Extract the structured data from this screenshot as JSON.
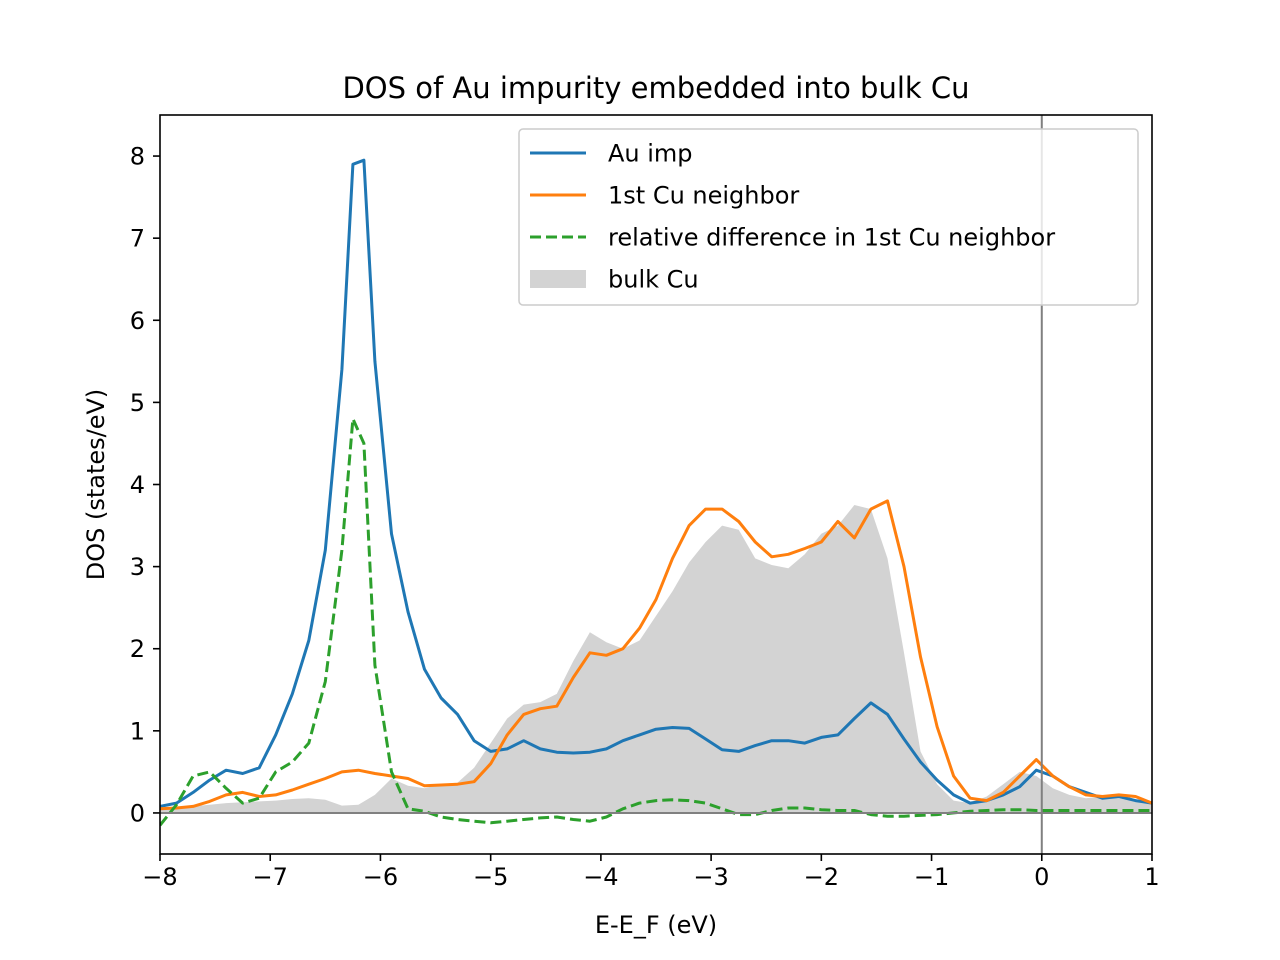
{
  "chart_data": {
    "type": "line",
    "title": "DOS of Au impurity embedded into bulk Cu",
    "xlabel": "E-E_F (eV)",
    "ylabel": "DOS (states/eV)",
    "xlim": [
      -8,
      1
    ],
    "ylim": [
      -0.5,
      8.5
    ],
    "xticks": [
      -8,
      -7,
      -6,
      -5,
      -4,
      -3,
      -2,
      -1,
      0,
      1
    ],
    "xtick_labels": [
      "−8",
      "−7",
      "−6",
      "−5",
      "−4",
      "−3",
      "−2",
      "−1",
      "0",
      "1"
    ],
    "yticks": [
      0,
      1,
      2,
      3,
      4,
      5,
      6,
      7,
      8
    ],
    "ytick_labels": [
      "0",
      "1",
      "2",
      "3",
      "4",
      "5",
      "6",
      "7",
      "8"
    ],
    "grid": false,
    "legend_position": "top-right",
    "reference_lines": [
      {
        "orientation": "vertical",
        "x": 0,
        "color": "#808080"
      },
      {
        "orientation": "horizontal",
        "y": 0,
        "color": "#808080"
      }
    ],
    "series": [
      {
        "name": "bulk Cu",
        "style": "fill",
        "color": "#d3d3d3",
        "x": [
          -8.0,
          -7.85,
          -7.7,
          -7.55,
          -7.4,
          -7.25,
          -7.1,
          -6.95,
          -6.8,
          -6.65,
          -6.5,
          -6.35,
          -6.2,
          -6.05,
          -5.9,
          -5.75,
          -5.6,
          -5.45,
          -5.3,
          -5.15,
          -5.0,
          -4.85,
          -4.7,
          -4.55,
          -4.4,
          -4.25,
          -4.1,
          -3.95,
          -3.8,
          -3.65,
          -3.5,
          -3.35,
          -3.2,
          -3.05,
          -2.9,
          -2.75,
          -2.6,
          -2.45,
          -2.3,
          -2.15,
          -2.0,
          -1.85,
          -1.7,
          -1.55,
          -1.4,
          -1.25,
          -1.1,
          -0.95,
          -0.8,
          -0.65,
          -0.5,
          -0.35,
          -0.2,
          -0.05,
          0.1,
          0.25,
          0.4,
          0.55,
          0.7,
          0.85,
          1.0
        ],
        "y": [
          0.05,
          0.06,
          0.08,
          0.1,
          0.12,
          0.13,
          0.14,
          0.15,
          0.17,
          0.18,
          0.16,
          0.09,
          0.1,
          0.22,
          0.42,
          0.33,
          0.3,
          0.35,
          0.37,
          0.55,
          0.85,
          1.15,
          1.32,
          1.35,
          1.45,
          1.85,
          2.2,
          2.08,
          2.0,
          2.1,
          2.4,
          2.7,
          3.05,
          3.3,
          3.5,
          3.45,
          3.1,
          3.02,
          2.98,
          3.15,
          3.4,
          3.5,
          3.75,
          3.7,
          3.1,
          1.95,
          0.75,
          0.35,
          0.15,
          0.12,
          0.2,
          0.35,
          0.5,
          0.45,
          0.3,
          0.22,
          0.18,
          0.2,
          0.18,
          0.14,
          0.12
        ]
      },
      {
        "name": "Au imp",
        "style": "solid",
        "color": "#1f77b4",
        "x": [
          -8.0,
          -7.85,
          -7.7,
          -7.55,
          -7.4,
          -7.25,
          -7.1,
          -6.95,
          -6.8,
          -6.65,
          -6.5,
          -6.35,
          -6.25,
          -6.15,
          -6.05,
          -5.9,
          -5.75,
          -5.6,
          -5.45,
          -5.3,
          -5.15,
          -5.0,
          -4.85,
          -4.7,
          -4.55,
          -4.4,
          -4.25,
          -4.1,
          -3.95,
          -3.8,
          -3.65,
          -3.5,
          -3.35,
          -3.2,
          -3.05,
          -2.9,
          -2.75,
          -2.6,
          -2.45,
          -2.3,
          -2.15,
          -2.0,
          -1.85,
          -1.7,
          -1.55,
          -1.4,
          -1.25,
          -1.1,
          -0.95,
          -0.8,
          -0.65,
          -0.5,
          -0.35,
          -0.2,
          -0.05,
          0.1,
          0.25,
          0.4,
          0.55,
          0.7,
          0.85,
          1.0
        ],
        "y": [
          0.08,
          0.12,
          0.25,
          0.4,
          0.52,
          0.48,
          0.55,
          0.95,
          1.45,
          2.1,
          3.2,
          5.4,
          7.9,
          7.95,
          5.5,
          3.4,
          2.45,
          1.75,
          1.4,
          1.2,
          0.88,
          0.75,
          0.78,
          0.88,
          0.78,
          0.74,
          0.73,
          0.74,
          0.78,
          0.88,
          0.95,
          1.02,
          1.04,
          1.03,
          0.9,
          0.77,
          0.75,
          0.82,
          0.88,
          0.88,
          0.85,
          0.92,
          0.95,
          1.15,
          1.34,
          1.2,
          0.9,
          0.62,
          0.4,
          0.22,
          0.12,
          0.15,
          0.22,
          0.32,
          0.52,
          0.45,
          0.32,
          0.25,
          0.18,
          0.2,
          0.15,
          0.12
        ]
      },
      {
        "name": "1st Cu neighbor",
        "style": "solid",
        "color": "#ff7f0e",
        "x": [
          -8.0,
          -7.85,
          -7.7,
          -7.55,
          -7.4,
          -7.25,
          -7.1,
          -6.95,
          -6.8,
          -6.65,
          -6.5,
          -6.35,
          -6.2,
          -6.05,
          -5.9,
          -5.75,
          -5.6,
          -5.45,
          -5.3,
          -5.15,
          -5.0,
          -4.85,
          -4.7,
          -4.55,
          -4.4,
          -4.25,
          -4.1,
          -3.95,
          -3.8,
          -3.65,
          -3.5,
          -3.35,
          -3.2,
          -3.05,
          -2.9,
          -2.75,
          -2.6,
          -2.45,
          -2.3,
          -2.15,
          -2.0,
          -1.85,
          -1.7,
          -1.55,
          -1.4,
          -1.25,
          -1.1,
          -0.95,
          -0.8,
          -0.65,
          -0.5,
          -0.35,
          -0.2,
          -0.05,
          0.1,
          0.25,
          0.4,
          0.55,
          0.7,
          0.85,
          1.0
        ],
        "y": [
          0.05,
          0.06,
          0.08,
          0.14,
          0.22,
          0.25,
          0.2,
          0.22,
          0.28,
          0.35,
          0.42,
          0.5,
          0.52,
          0.48,
          0.45,
          0.42,
          0.33,
          0.34,
          0.35,
          0.38,
          0.6,
          0.95,
          1.2,
          1.27,
          1.3,
          1.65,
          1.95,
          1.92,
          2.0,
          2.25,
          2.6,
          3.1,
          3.5,
          3.7,
          3.7,
          3.55,
          3.3,
          3.12,
          3.15,
          3.22,
          3.3,
          3.55,
          3.35,
          3.7,
          3.8,
          3.0,
          1.9,
          1.05,
          0.45,
          0.18,
          0.15,
          0.25,
          0.45,
          0.65,
          0.45,
          0.32,
          0.22,
          0.2,
          0.22,
          0.2,
          0.12
        ]
      },
      {
        "name": "relative difference in 1st Cu neighbor",
        "style": "dashed",
        "color": "#2ca02c",
        "x": [
          -8.0,
          -7.85,
          -7.7,
          -7.55,
          -7.4,
          -7.25,
          -7.1,
          -6.95,
          -6.8,
          -6.65,
          -6.5,
          -6.35,
          -6.25,
          -6.15,
          -6.05,
          -5.9,
          -5.75,
          -5.6,
          -5.45,
          -5.3,
          -5.15,
          -5.0,
          -4.85,
          -4.7,
          -4.55,
          -4.4,
          -4.25,
          -4.1,
          -3.95,
          -3.8,
          -3.65,
          -3.5,
          -3.35,
          -3.2,
          -3.05,
          -2.9,
          -2.75,
          -2.6,
          -2.45,
          -2.3,
          -2.15,
          -2.0,
          -1.85,
          -1.7,
          -1.55,
          -1.4,
          -1.25,
          -1.1,
          -0.95,
          -0.8,
          -0.65,
          -0.5,
          -0.35,
          -0.2,
          -0.05,
          0.1,
          0.25,
          0.4,
          0.55,
          0.7,
          0.85,
          1.0
        ],
        "y": [
          -0.15,
          0.1,
          0.45,
          0.5,
          0.3,
          0.12,
          0.18,
          0.5,
          0.62,
          0.85,
          1.6,
          3.2,
          4.8,
          4.5,
          1.8,
          0.5,
          0.05,
          0.02,
          -0.05,
          -0.08,
          -0.1,
          -0.12,
          -0.1,
          -0.08,
          -0.06,
          -0.05,
          -0.08,
          -0.1,
          -0.05,
          0.05,
          0.12,
          0.15,
          0.16,
          0.15,
          0.12,
          0.05,
          -0.02,
          -0.02,
          0.03,
          0.06,
          0.06,
          0.04,
          0.03,
          0.03,
          -0.02,
          -0.04,
          -0.04,
          -0.03,
          -0.02,
          0.0,
          0.02,
          0.03,
          0.04,
          0.04,
          0.03,
          0.03,
          0.03,
          0.03,
          0.03,
          0.03,
          0.03,
          0.03
        ]
      }
    ]
  }
}
